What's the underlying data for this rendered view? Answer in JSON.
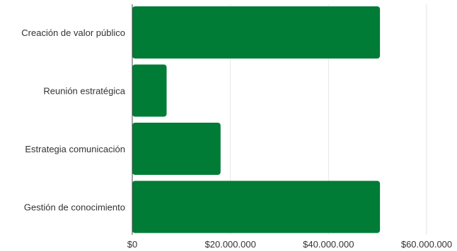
{
  "chart_data": {
    "type": "bar",
    "orientation": "horizontal",
    "categories": [
      "Creación de valor público",
      "Reunión estratégica",
      "Estrategia comunicación",
      "Gestión de conocimiento"
    ],
    "values": [
      50500000,
      7000000,
      18000000,
      50500000
    ],
    "xlim": [
      0,
      60000000
    ],
    "xticks": [
      0,
      20000000,
      40000000,
      60000000
    ],
    "xtick_labels": [
      "$0",
      "$20.000.000",
      "$40.000.000",
      "$60.000.000"
    ],
    "grid": "vertical",
    "legend": "none",
    "bar_color": "#007c36"
  }
}
